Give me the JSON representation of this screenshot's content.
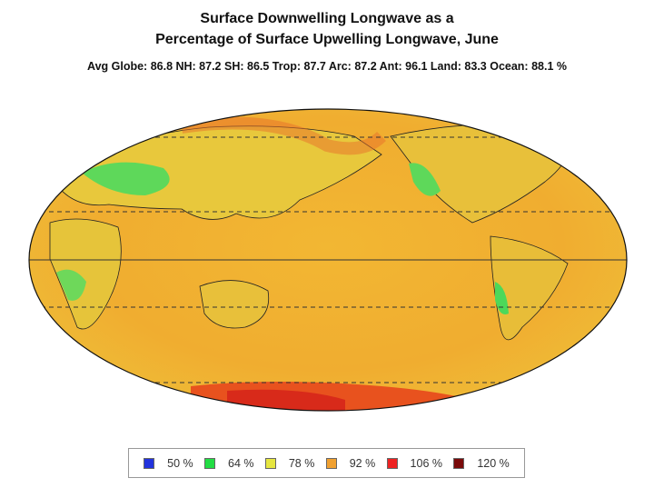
{
  "title_line1": "Surface Downwelling Longwave as a",
  "title_line2": "Percentage of Surface Upwelling Longwave, June",
  "stats": "Avg Globe: 86.8  NH: 87.2  SH: 86.5  Trop: 87.7  Arc: 87.2  Ant: 96.1  Land: 83.3 Ocean: 88.1 %",
  "legend": [
    {
      "label": "50 %",
      "color": "#2233dd"
    },
    {
      "label": "64 %",
      "color": "#22dd44"
    },
    {
      "label": "78 %",
      "color": "#e6e640"
    },
    {
      "label": "92 %",
      "color": "#f0a030"
    },
    {
      "label": "106 %",
      "color": "#ee2222"
    },
    {
      "label": "120 %",
      "color": "#7a0a0a"
    }
  ]
}
